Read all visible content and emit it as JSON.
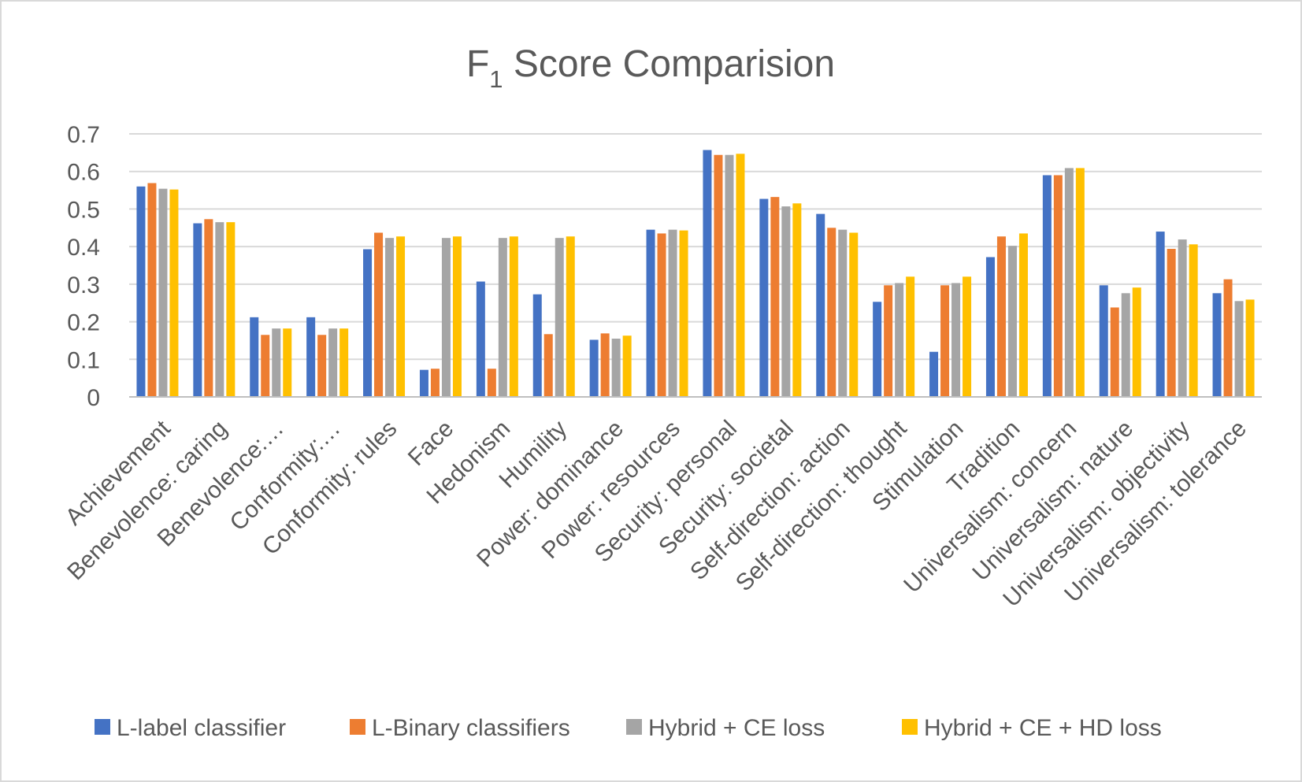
{
  "chart_data": {
    "type": "bar",
    "title": {
      "main": "F",
      "subscript": "1",
      "rest": " Score Comparision"
    },
    "xlabel": "",
    "ylabel": "",
    "ylim": [
      0,
      0.7
    ],
    "yticks": [
      "0",
      "0.1",
      "0.2",
      "0.3",
      "0.4",
      "0.5",
      "0.6",
      "0.7"
    ],
    "grid": true,
    "legend_position": "bottom",
    "categories": [
      "Achievement",
      "Benevolence: caring",
      "Benevolence:…",
      "Conformity:…",
      "Conformity: rules",
      "Face",
      "Hedonism",
      "Humility",
      "Power: dominance",
      "Power: resources",
      "Security: personal",
      "Security: societal",
      "Self-direction: action",
      "Self-direction: thought",
      "Stimulation",
      "Tradition",
      "Universalism: concern",
      "Universalism: nature",
      "Universalism: objectivity",
      "Universalism: tolerance"
    ],
    "series": [
      {
        "name": "L-label classifier",
        "color": "#4472c4",
        "values": [
          0.56,
          0.462,
          0.212,
          0.212,
          0.393,
          0.072,
          0.307,
          0.273,
          0.152,
          0.445,
          0.657,
          0.527,
          0.487,
          0.253,
          0.12,
          0.372,
          0.59,
          0.297,
          0.44,
          0.276
        ]
      },
      {
        "name": "L-Binary classifiers",
        "color": "#ed7d31",
        "values": [
          0.569,
          0.473,
          0.165,
          0.165,
          0.437,
          0.075,
          0.075,
          0.167,
          0.169,
          0.435,
          0.644,
          0.532,
          0.45,
          0.297,
          0.297,
          0.427,
          0.59,
          0.238,
          0.394,
          0.313
        ]
      },
      {
        "name": "Hybrid + CE loss",
        "color": "#a5a5a5",
        "values": [
          0.554,
          0.465,
          0.182,
          0.182,
          0.423,
          0.423,
          0.423,
          0.423,
          0.155,
          0.445,
          0.644,
          0.507,
          0.445,
          0.303,
          0.303,
          0.402,
          0.609,
          0.276,
          0.419,
          0.255
        ]
      },
      {
        "name": "Hybrid + CE + HD loss",
        "color": "#ffc000",
        "values": [
          0.552,
          0.465,
          0.182,
          0.182,
          0.427,
          0.427,
          0.427,
          0.427,
          0.163,
          0.443,
          0.647,
          0.515,
          0.437,
          0.32,
          0.32,
          0.435,
          0.609,
          0.291,
          0.406,
          0.259
        ]
      }
    ]
  }
}
